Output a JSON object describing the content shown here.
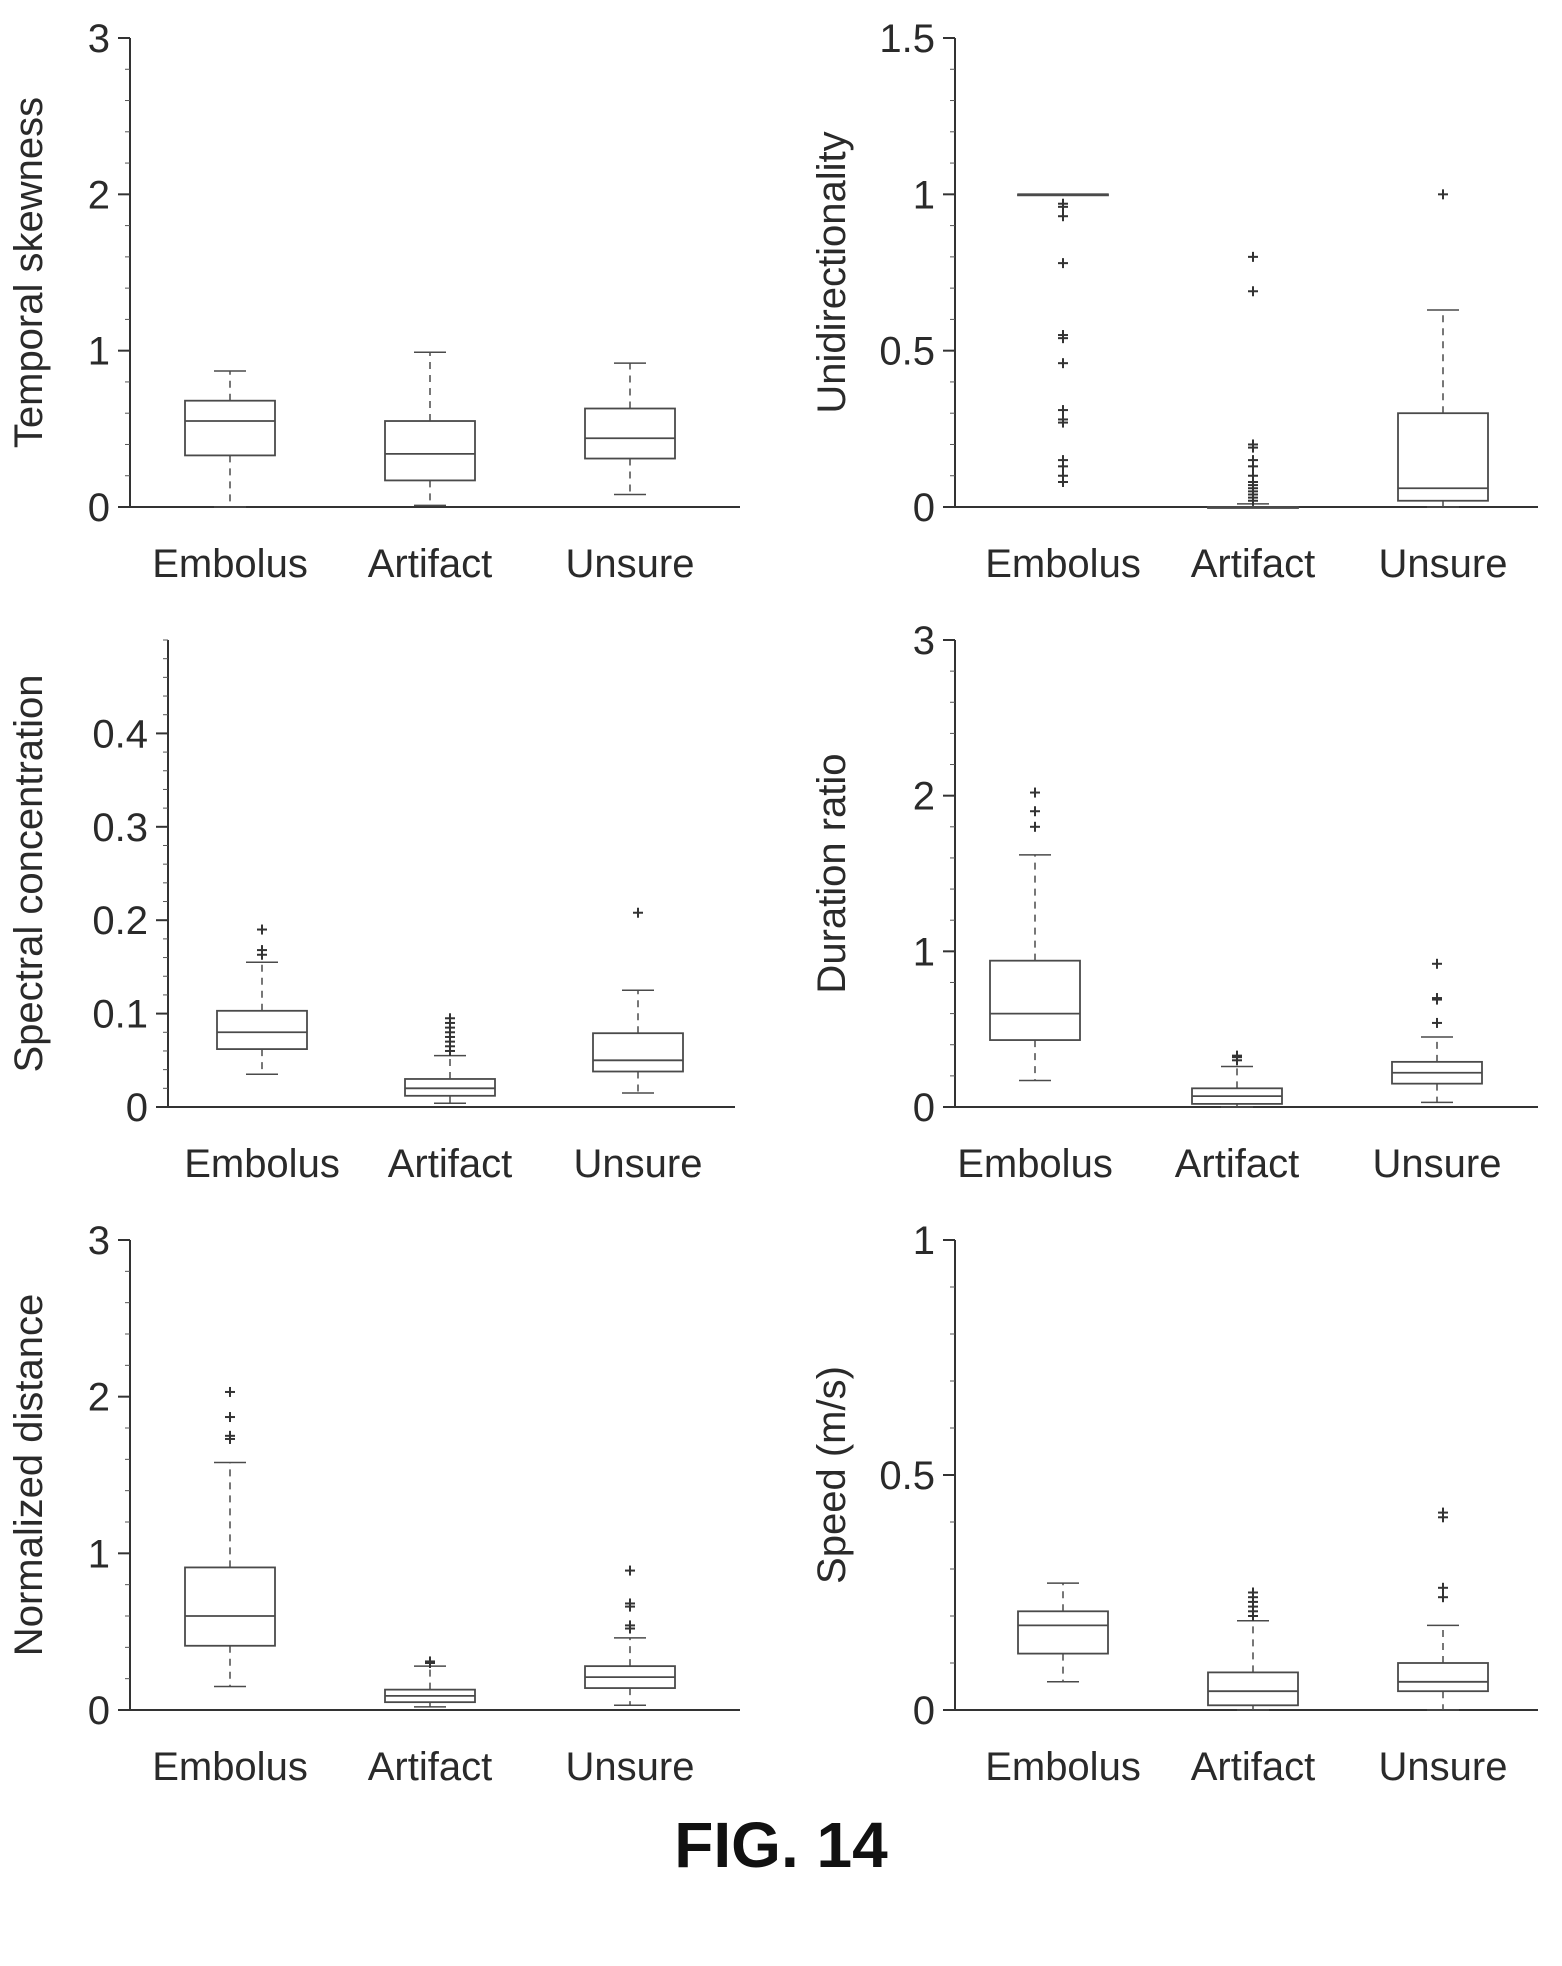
{
  "figure_label": "FIG. 14",
  "chart_data": [
    {
      "type": "box",
      "ylabel": "Temporal skewness",
      "ylim": [
        0,
        3
      ],
      "yticks": [
        "0",
        "1",
        "2",
        "3"
      ],
      "categories": [
        "Embolus",
        "Artifact",
        "Unsure"
      ],
      "boxes": [
        {
          "category": "Embolus",
          "whisker_low": 0.0,
          "q1": 0.33,
          "median": 0.55,
          "q3": 0.68,
          "whisker_high": 0.87,
          "outliers": []
        },
        {
          "category": "Artifact",
          "whisker_low": 0.01,
          "q1": 0.17,
          "median": 0.34,
          "q3": 0.55,
          "whisker_high": 0.99,
          "outliers": []
        },
        {
          "category": "Unsure",
          "whisker_low": 0.08,
          "q1": 0.31,
          "median": 0.44,
          "q3": 0.63,
          "whisker_high": 0.92,
          "outliers": []
        }
      ]
    },
    {
      "type": "box",
      "ylabel": "Unidirectionality",
      "ylim": [
        0,
        1.5
      ],
      "yticks": [
        "0",
        "0.5",
        "1",
        "1.5"
      ],
      "categories": [
        "Embolus",
        "Artifact",
        "Unsure"
      ],
      "boxes": [
        {
          "category": "Embolus",
          "whisker_low": 1.0,
          "q1": 1.0,
          "median": 1.0,
          "q3": 1.0,
          "whisker_high": 1.0,
          "outliers": [
            0.08,
            0.1,
            0.13,
            0.15,
            0.27,
            0.28,
            0.31,
            0.46,
            0.54,
            0.55,
            0.78,
            0.93,
            0.96,
            0.97
          ]
        },
        {
          "category": "Artifact",
          "whisker_low": 0.0,
          "q1": 0.0,
          "median": 0.0,
          "q3": 0.0,
          "whisker_high": 0.01,
          "outliers": [
            0.02,
            0.03,
            0.04,
            0.05,
            0.06,
            0.07,
            0.08,
            0.1,
            0.13,
            0.15,
            0.19,
            0.2,
            0.69,
            0.8
          ]
        },
        {
          "category": "Unsure",
          "whisker_low": 0.0,
          "q1": 0.02,
          "median": 0.06,
          "q3": 0.3,
          "whisker_high": 0.63,
          "outliers": [
            1.0
          ]
        }
      ]
    },
    {
      "type": "box",
      "ylabel": "Spectral concentration",
      "ylim": [
        0,
        0.5
      ],
      "yticks": [
        "0",
        "0.1",
        "0.2",
        "0.3",
        "0.4"
      ],
      "categories": [
        "Embolus",
        "Artifact",
        "Unsure"
      ],
      "boxes": [
        {
          "category": "Embolus",
          "whisker_low": 0.035,
          "q1": 0.062,
          "median": 0.08,
          "q3": 0.103,
          "whisker_high": 0.155,
          "outliers": [
            0.163,
            0.168,
            0.19
          ]
        },
        {
          "category": "Artifact",
          "whisker_low": 0.004,
          "q1": 0.012,
          "median": 0.02,
          "q3": 0.03,
          "whisker_high": 0.055,
          "outliers": [
            0.06,
            0.065,
            0.07,
            0.075,
            0.08,
            0.085,
            0.09,
            0.095
          ]
        },
        {
          "category": "Unsure",
          "whisker_low": 0.015,
          "q1": 0.038,
          "median": 0.05,
          "q3": 0.079,
          "whisker_high": 0.125,
          "outliers": [
            0.208
          ]
        }
      ]
    },
    {
      "type": "box",
      "ylabel": "Duration ratio",
      "ylim": [
        0,
        3
      ],
      "yticks": [
        "0",
        "1",
        "2",
        "3"
      ],
      "categories": [
        "Embolus",
        "Artifact",
        "Unsure"
      ],
      "boxes": [
        {
          "category": "Embolus",
          "whisker_low": 0.17,
          "q1": 0.43,
          "median": 0.6,
          "q3": 0.94,
          "whisker_high": 1.62,
          "outliers": [
            1.8,
            1.9,
            2.02
          ]
        },
        {
          "category": "Artifact",
          "whisker_low": 0.0,
          "q1": 0.02,
          "median": 0.07,
          "q3": 0.12,
          "whisker_high": 0.26,
          "outliers": [
            0.3,
            0.32,
            0.33
          ]
        },
        {
          "category": "Unsure",
          "whisker_low": 0.03,
          "q1": 0.15,
          "median": 0.22,
          "q3": 0.29,
          "whisker_high": 0.45,
          "outliers": [
            0.54,
            0.69,
            0.7,
            0.92
          ]
        }
      ]
    },
    {
      "type": "box",
      "ylabel": "Normalized distance",
      "ylim": [
        0,
        3
      ],
      "yticks": [
        "0",
        "1",
        "2",
        "3"
      ],
      "categories": [
        "Embolus",
        "Artifact",
        "Unsure"
      ],
      "boxes": [
        {
          "category": "Embolus",
          "whisker_low": 0.15,
          "q1": 0.41,
          "median": 0.6,
          "q3": 0.91,
          "whisker_high": 1.58,
          "outliers": [
            1.73,
            1.75,
            1.87,
            2.03
          ]
        },
        {
          "category": "Artifact",
          "whisker_low": 0.02,
          "q1": 0.05,
          "median": 0.09,
          "q3": 0.13,
          "whisker_high": 0.28,
          "outliers": [
            0.3,
            0.31
          ]
        },
        {
          "category": "Unsure",
          "whisker_low": 0.03,
          "q1": 0.14,
          "median": 0.21,
          "q3": 0.28,
          "whisker_high": 0.46,
          "outliers": [
            0.52,
            0.54,
            0.66,
            0.68,
            0.89
          ]
        }
      ]
    },
    {
      "type": "box",
      "ylabel": "Speed (m/s)",
      "ylim": [
        0,
        1
      ],
      "yticks": [
        "0",
        "0.5",
        "1"
      ],
      "categories": [
        "Embolus",
        "Artifact",
        "Unsure"
      ],
      "boxes": [
        {
          "category": "Embolus",
          "whisker_low": 0.06,
          "q1": 0.12,
          "median": 0.18,
          "q3": 0.21,
          "whisker_high": 0.27,
          "outliers": []
        },
        {
          "category": "Artifact",
          "whisker_low": 0.0,
          "q1": 0.01,
          "median": 0.04,
          "q3": 0.08,
          "whisker_high": 0.19,
          "outliers": [
            0.2,
            0.21,
            0.22,
            0.23,
            0.24,
            0.25
          ]
        },
        {
          "category": "Unsure",
          "whisker_low": 0.0,
          "q1": 0.04,
          "median": 0.06,
          "q3": 0.1,
          "whisker_high": 0.18,
          "outliers": [
            0.24,
            0.26,
            0.41,
            0.42
          ]
        }
      ]
    }
  ]
}
